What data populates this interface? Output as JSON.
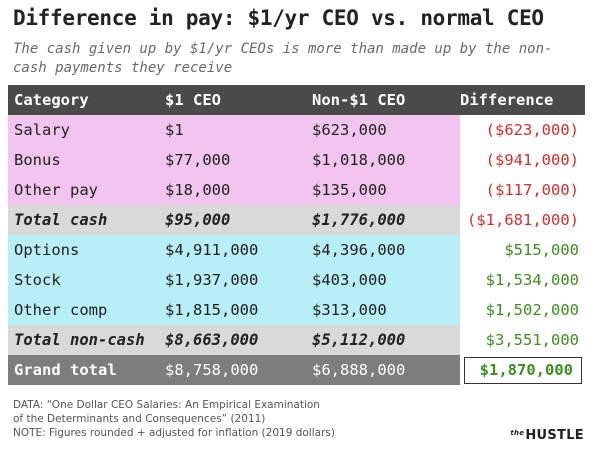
{
  "chart_data": {
    "type": "table",
    "title": "Difference in pay: $1/yr CEO vs. normal CEO",
    "subtitle": "The cash given up by $1/yr CEOs is more than made up by the non-cash payments they receive",
    "columns": [
      "Category",
      "$1 CEO",
      "Non-$1 CEO",
      "Difference"
    ],
    "rows": [
      {
        "kind": "cash",
        "sign": "neg",
        "cells": [
          "Salary",
          "$1",
          "$623,000",
          "($623,000)"
        ]
      },
      {
        "kind": "cash",
        "sign": "neg",
        "cells": [
          "Bonus",
          "$77,000",
          "$1,018,000",
          "($941,000)"
        ]
      },
      {
        "kind": "cash",
        "sign": "neg",
        "cells": [
          "Other pay",
          "$18,000",
          "$135,000",
          "($117,000)"
        ]
      },
      {
        "kind": "subtotal",
        "sign": "neg",
        "cells": [
          "Total cash",
          "$95,000",
          "$1,776,000",
          "($1,681,000)"
        ]
      },
      {
        "kind": "noncash",
        "sign": "pos",
        "cells": [
          "Options",
          "$4,911,000",
          "$4,396,000",
          "$515,000"
        ]
      },
      {
        "kind": "noncash",
        "sign": "pos",
        "cells": [
          "Stock",
          "$1,937,000",
          "$403,000",
          "$1,534,000"
        ]
      },
      {
        "kind": "noncash",
        "sign": "pos",
        "cells": [
          "Other comp",
          "$1,815,000",
          "$313,000",
          "$1,502,000"
        ]
      },
      {
        "kind": "subtotal",
        "sign": "pos",
        "cells": [
          "Total non-cash",
          "$8,663,000",
          "$5,112,000",
          "$3,551,000"
        ]
      },
      {
        "kind": "grand",
        "sign": "pos",
        "cells": [
          "Grand total",
          "$8,758,000",
          "$6,888,000",
          "$1,870,000"
        ]
      }
    ],
    "colors": {
      "header": "#4a4a4a",
      "cash": "#f1c5ee",
      "noncash": "#b8eef5",
      "subtotal": "#d9d9d9",
      "grand": "#7d7d7d",
      "negative": "#d0312d",
      "positive": "#3e8e1f"
    }
  },
  "footnote": {
    "line1": "DATA: “One Dollar CEO Salaries: An Empirical Examination",
    "line2": "of the Determinants and Consequences” (2011)",
    "line3": "NOTE: Figures rounded + adjusted for inflation (2019 dollars)"
  },
  "logo": {
    "prefix": "the",
    "name": "HUSTLE"
  }
}
